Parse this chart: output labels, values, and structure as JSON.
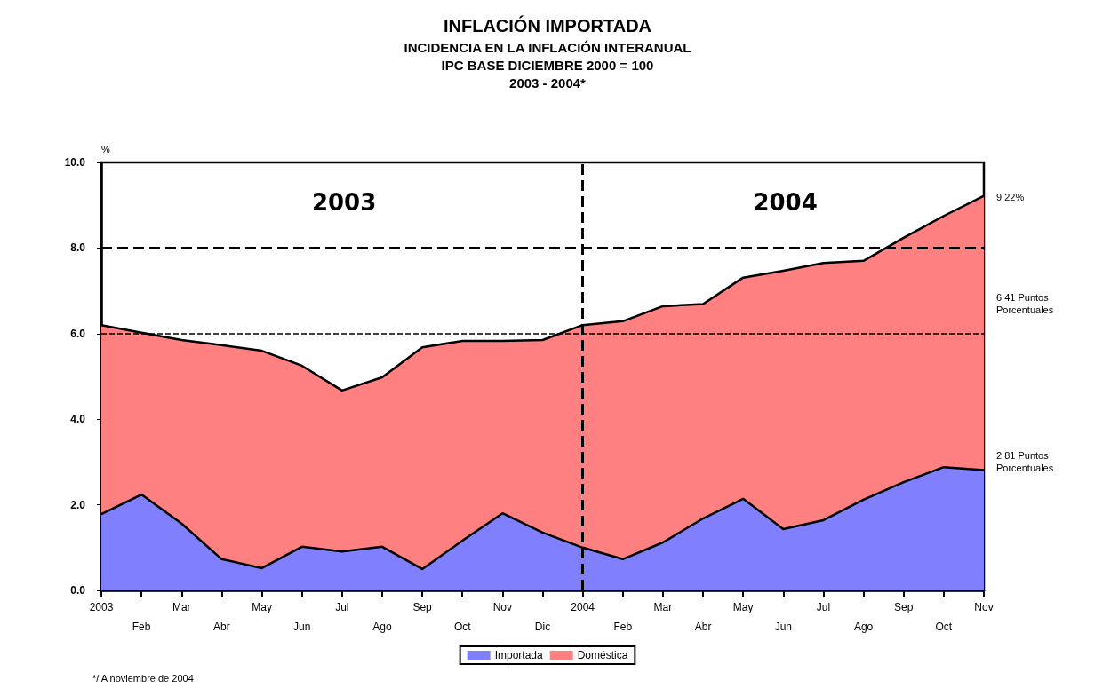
{
  "chart_data": {
    "type": "area",
    "title": "INFLACIÓN IMPORTADA",
    "subtitle": "INCIDENCIA EN LA INFLACIÓN INTERANUAL\nIPC BASE DICIEMBRE 2000 = 100\n2003 - 2004*",
    "ylabel": "%",
    "categories": [
      "2003",
      "Feb",
      "Mar",
      "Abr",
      "May",
      "Jun",
      "Jul",
      "Ago",
      "Sep",
      "Oct",
      "Nov",
      "Dic",
      "2004",
      "Feb",
      "Mar",
      "Abr",
      "May",
      "Jun",
      "Jul",
      "Ago",
      "Sep",
      "Oct",
      "Nov"
    ],
    "stacked": true,
    "series": [
      {
        "name": "Importada",
        "color": "#8080ff",
        "values": [
          1.78,
          2.24,
          1.56,
          0.73,
          0.52,
          1.02,
          0.91,
          1.02,
          0.5,
          1.16,
          1.8,
          1.35,
          1.0,
          0.73,
          1.12,
          1.68,
          2.14,
          1.43,
          1.64,
          2.12,
          2.53,
          2.88,
          2.81
        ]
      },
      {
        "name": "Doméstica",
        "color": "#ff8080",
        "values": [
          4.42,
          3.78,
          4.29,
          5.0,
          5.08,
          4.23,
          3.76,
          3.96,
          5.18,
          4.67,
          4.03,
          4.5,
          5.2,
          5.56,
          5.52,
          5.01,
          5.17,
          6.04,
          6.01,
          5.58,
          5.71,
          5.87,
          6.41
        ]
      }
    ],
    "ylim": [
      0,
      10
    ],
    "yticks": [
      {
        "value": 0,
        "label": "0.0"
      },
      {
        "value": 2,
        "label": "2.0"
      },
      {
        "value": 4,
        "label": "4.0"
      },
      {
        "value": 6,
        "label": "6.0"
      },
      {
        "value": 8,
        "label": "8.0"
      },
      {
        "value": 10,
        "label": "10.0"
      }
    ],
    "ref_lines": [
      {
        "axis": "y",
        "value": 8,
        "color": "#000000",
        "line_style": "dashed"
      },
      {
        "axis": "y",
        "value": 6,
        "color": "#000000",
        "line_style": "dashed"
      },
      {
        "axis": "x",
        "value": "2004",
        "color": "#000000",
        "line_style": "dashed"
      }
    ],
    "annotations": [
      "2003",
      "2004",
      "9.22%",
      "6.41 Puntos\nPorcentuales",
      "2.81 Puntos\nPorcentuales",
      "*/ A noviembre de 2004"
    ],
    "grid": false,
    "legend": "bottom",
    "marker": "none",
    "line_style": "solid"
  }
}
